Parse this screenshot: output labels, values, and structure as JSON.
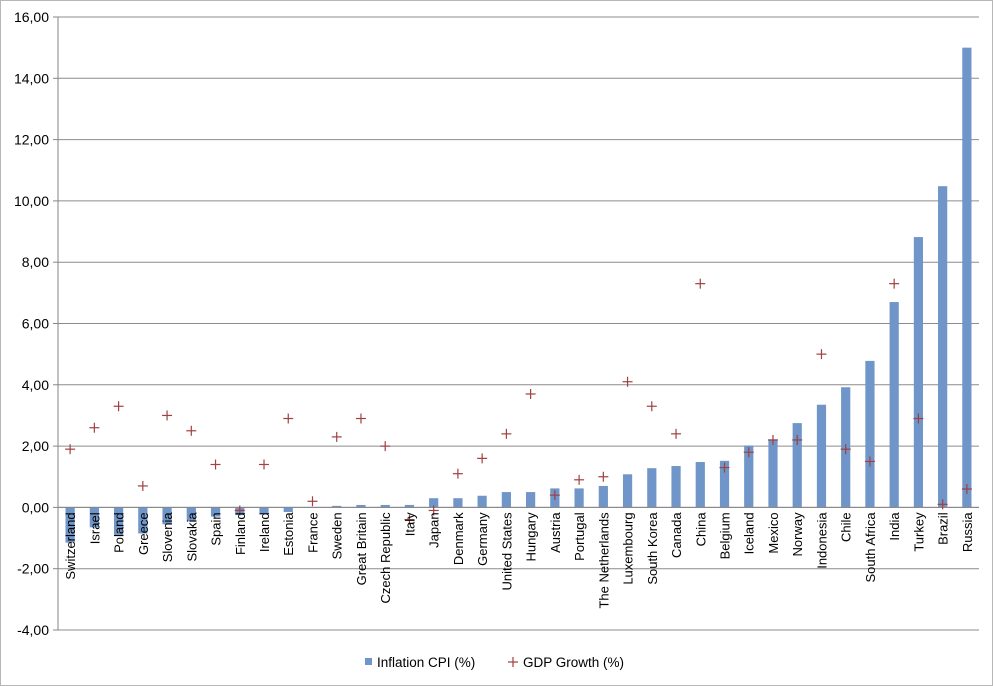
{
  "chart_data": {
    "type": "bar",
    "title": "",
    "xlabel": "",
    "ylabel": "",
    "ylim": [
      -4,
      16
    ],
    "yticks": [
      -4,
      -2,
      0,
      2,
      4,
      6,
      8,
      10,
      12,
      14,
      16
    ],
    "ytick_labels": [
      "-4,00",
      "-2,00",
      "0,00",
      "2,00",
      "4,00",
      "6,00",
      "8,00",
      "10,00",
      "12,00",
      "14,00",
      "16,00"
    ],
    "grid": "horizontal",
    "legend_position": "bottom",
    "categories": [
      "Switzerland",
      "Israel",
      "Poland",
      "Greece",
      "Slovenia",
      "Slovakia",
      "Spain",
      "Finland",
      "Ireland",
      "Estonia",
      "France",
      "Sweden",
      "Great Britain",
      "Czech Republic",
      "Italy",
      "Japan",
      "Denmark",
      "Germany",
      "United States",
      "Hungary",
      "Austria",
      "Portugal",
      "The Netherlands",
      "Luxembourg",
      "South Korea",
      "Canada",
      "China",
      "Belgium",
      "Iceland",
      "Mexico",
      "Norway",
      "Indonesia",
      "Chile",
      "South Africa",
      "India",
      "Turkey",
      "Brazil",
      "Russia"
    ],
    "series": [
      {
        "name": "Inflation CPI (%)",
        "kind": "bar",
        "color": "#7095c8",
        "values": [
          -1.15,
          -0.65,
          -0.9,
          -0.85,
          -0.55,
          -0.45,
          -0.3,
          -0.25,
          -0.2,
          -0.15,
          0.0,
          0.05,
          0.08,
          0.08,
          0.08,
          0.3,
          0.3,
          0.38,
          0.5,
          0.5,
          0.62,
          0.62,
          0.7,
          1.08,
          1.28,
          1.35,
          1.48,
          1.52,
          2.02,
          2.22,
          2.75,
          3.35,
          3.92,
          4.78,
          6.7,
          8.82,
          10.48,
          15.0
        ]
      },
      {
        "name": "GDP Growth (%)",
        "kind": "marker",
        "marker": "plus",
        "color": "#a04040",
        "values": [
          1.9,
          2.6,
          3.3,
          0.7,
          3.0,
          2.5,
          1.4,
          -0.1,
          1.4,
          2.9,
          0.2,
          2.3,
          2.9,
          2.0,
          -0.4,
          -0.1,
          1.1,
          1.6,
          2.4,
          3.7,
          0.4,
          0.9,
          1.0,
          4.1,
          3.3,
          2.4,
          7.3,
          1.3,
          1.8,
          2.2,
          2.2,
          5.0,
          1.9,
          1.5,
          7.3,
          2.9,
          0.1,
          0.6
        ]
      }
    ]
  }
}
